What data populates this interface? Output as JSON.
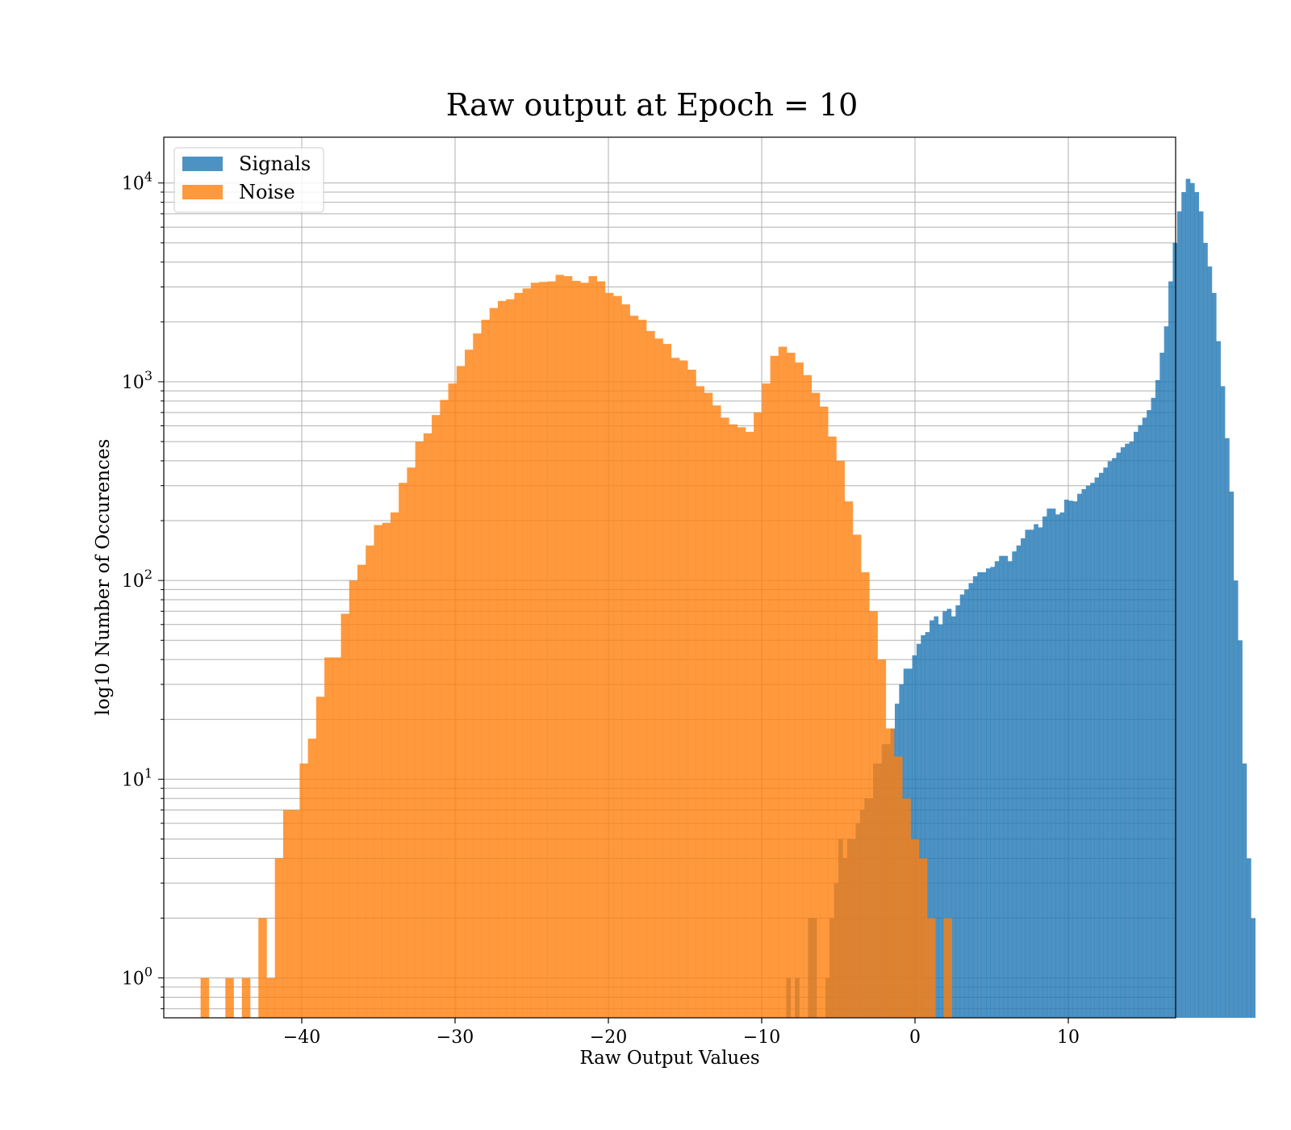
{
  "chart_data": {
    "type": "bar",
    "title": "Raw output at Epoch = 10",
    "xlabel": "Raw Output Values",
    "ylabel": "log10 Number of Occurences",
    "xlim": [
      -49,
      17
    ],
    "ylim": [
      0.63,
      17000
    ],
    "yscale": "log",
    "xticks": [
      -40,
      -30,
      -20,
      -10,
      0,
      10
    ],
    "xtick_labels": [
      "−40",
      "−30",
      "−20",
      "−10",
      "0",
      "10"
    ],
    "yticks": [
      1,
      10,
      100,
      1000,
      10000
    ],
    "ytick_bases": [
      "10",
      "10",
      "10",
      "10",
      "10"
    ],
    "ytick_exponents": [
      "0",
      "1",
      "2",
      "3",
      "4"
    ],
    "grid": true,
    "legend_position": "top-left",
    "legend": [
      "Signals",
      "Noise"
    ],
    "series": [
      {
        "name": "Signals",
        "color": "#1f77b4",
        "opacity": 0.8,
        "bin_start": -8.4,
        "bin_width": 0.2833,
        "values": [
          1,
          0,
          1,
          0,
          0,
          2,
          2,
          0,
          0,
          1,
          2,
          3,
          5,
          4,
          5,
          5,
          6,
          7,
          8,
          8,
          12,
          12,
          15,
          15,
          18,
          24,
          30,
          36,
          36,
          42,
          48,
          53,
          55,
          63,
          66,
          60,
          70,
          72,
          66,
          75,
          85,
          90,
          97,
          105,
          110,
          110,
          115,
          117,
          125,
          133,
          133,
          125,
          140,
          150,
          163,
          180,
          180,
          192,
          185,
          210,
          230,
          230,
          215,
          220,
          255,
          252,
          250,
          273,
          288,
          300,
          310,
          330,
          348,
          370,
          398,
          413,
          440,
          468,
          488,
          500,
          560,
          605,
          660,
          720,
          830,
          1020,
          1400,
          1900,
          3200,
          5000,
          7200,
          9000,
          10500,
          10000,
          9000,
          7200,
          5000,
          3800,
          2800,
          1600,
          950,
          520,
          280,
          100,
          50,
          12,
          4,
          2
        ]
      },
      {
        "name": "Noise",
        "color": "#ff7f0e",
        "opacity": 0.8,
        "bin_start": -46.6,
        "bin_width": 0.5385,
        "values": [
          1,
          0,
          0,
          1,
          0,
          1,
          0,
          2,
          1,
          4,
          7,
          7,
          12,
          16,
          26,
          41,
          41,
          68,
          100,
          120,
          150,
          190,
          195,
          220,
          310,
          370,
          500,
          550,
          680,
          810,
          980,
          1200,
          1450,
          1750,
          2050,
          2350,
          2550,
          2600,
          2800,
          2950,
          3150,
          3180,
          3200,
          3450,
          3400,
          3220,
          3150,
          3400,
          3200,
          2800,
          2700,
          2450,
          2150,
          2050,
          1800,
          1650,
          1550,
          1320,
          1280,
          1150,
          950,
          880,
          760,
          660,
          610,
          590,
          560,
          700,
          980,
          1350,
          1500,
          1400,
          1250,
          1080,
          880,
          750,
          530,
          400,
          250,
          170,
          110,
          70,
          40,
          18,
          13,
          8,
          5,
          4,
          2,
          0,
          2
        ]
      }
    ]
  }
}
